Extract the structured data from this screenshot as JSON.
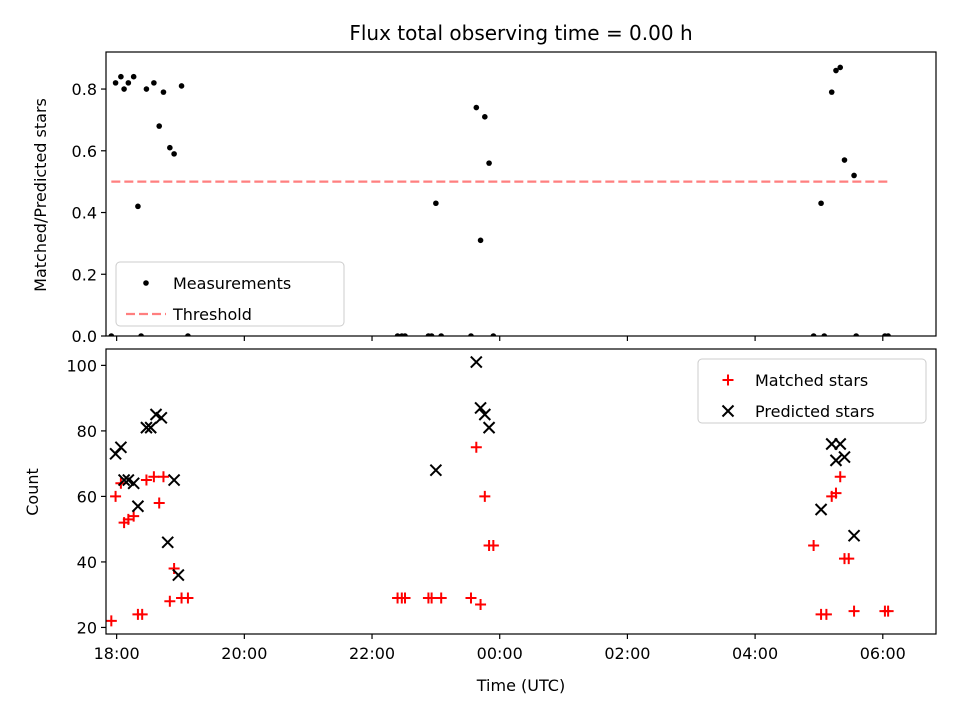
{
  "chart_data": [
    {
      "type": "scatter",
      "title": "Flux total observing time = 0.00 h",
      "xlabel": "",
      "ylabel": "Matched/Predicted stars",
      "xlim": [
        "17:50",
        "06:50"
      ],
      "ylim": [
        0,
        0.92
      ],
      "yticks": [
        "0.0",
        "0.2",
        "0.4",
        "0.6",
        "0.8"
      ],
      "legend_position": "lower-left",
      "series": [
        {
          "name": "Measurements",
          "marker": "dot",
          "color": "#000000",
          "points": [
            {
              "x": "17:59",
              "y": 0.82
            },
            {
              "x": "18:04",
              "y": 0.84
            },
            {
              "x": "18:07",
              "y": 0.8
            },
            {
              "x": "18:11",
              "y": 0.82
            },
            {
              "x": "18:16",
              "y": 0.84
            },
            {
              "x": "18:20",
              "y": 0.42
            },
            {
              "x": "18:28",
              "y": 0.8
            },
            {
              "x": "18:35",
              "y": 0.82
            },
            {
              "x": "18:40",
              "y": 0.68
            },
            {
              "x": "18:44",
              "y": 0.79
            },
            {
              "x": "18:50",
              "y": 0.61
            },
            {
              "x": "18:54",
              "y": 0.59
            },
            {
              "x": "19:01",
              "y": 0.81
            },
            {
              "x": "17:55",
              "y": 0.0
            },
            {
              "x": "18:23",
              "y": 0.0
            },
            {
              "x": "19:07",
              "y": 0.0
            },
            {
              "x": "23:00",
              "y": 0.43
            },
            {
              "x": "23:38",
              "y": 0.74
            },
            {
              "x": "23:42",
              "y": 0.31
            },
            {
              "x": "23:46",
              "y": 0.71
            },
            {
              "x": "23:50",
              "y": 0.56
            },
            {
              "x": "22:24",
              "y": 0.0
            },
            {
              "x": "22:28",
              "y": 0.0
            },
            {
              "x": "22:31",
              "y": 0.0
            },
            {
              "x": "22:53",
              "y": 0.0
            },
            {
              "x": "22:56",
              "y": 0.0
            },
            {
              "x": "23:05",
              "y": 0.0
            },
            {
              "x": "23:33",
              "y": 0.0
            },
            {
              "x": "23:54",
              "y": 0.0
            },
            {
              "x": "05:02",
              "y": 0.43
            },
            {
              "x": "05:12",
              "y": 0.79
            },
            {
              "x": "05:16",
              "y": 0.86
            },
            {
              "x": "05:20",
              "y": 0.87
            },
            {
              "x": "05:24",
              "y": 0.57
            },
            {
              "x": "05:33",
              "y": 0.52
            },
            {
              "x": "04:55",
              "y": 0.0
            },
            {
              "x": "05:05",
              "y": 0.0
            },
            {
              "x": "05:35",
              "y": 0.0
            },
            {
              "x": "06:02",
              "y": 0.0
            },
            {
              "x": "06:05",
              "y": 0.0
            }
          ]
        },
        {
          "name": "Threshold",
          "line_style": "dashed",
          "color": "#ff7f7f",
          "x": [
            "17:55",
            "06:05"
          ],
          "y": [
            0.5,
            0.5
          ]
        }
      ]
    },
    {
      "type": "scatter",
      "title": "",
      "xlabel": "Time (UTC)",
      "ylabel": "Count",
      "xlim": [
        "17:50",
        "06:50"
      ],
      "ylim": [
        18,
        105
      ],
      "xticks": [
        "18:00",
        "20:00",
        "22:00",
        "00:00",
        "02:00",
        "04:00",
        "06:00"
      ],
      "yticks": [
        "20",
        "40",
        "60",
        "80",
        "100"
      ],
      "legend_position": "upper-right",
      "series": [
        {
          "name": "Matched stars",
          "marker": "plus",
          "color": "#ff0000",
          "points": [
            {
              "x": "17:55",
              "y": 22
            },
            {
              "x": "17:59",
              "y": 60
            },
            {
              "x": "18:04",
              "y": 64
            },
            {
              "x": "18:07",
              "y": 52
            },
            {
              "x": "18:11",
              "y": 53
            },
            {
              "x": "18:16",
              "y": 54
            },
            {
              "x": "18:20",
              "y": 24
            },
            {
              "x": "18:24",
              "y": 24
            },
            {
              "x": "18:28",
              "y": 65
            },
            {
              "x": "18:35",
              "y": 66
            },
            {
              "x": "18:40",
              "y": 58
            },
            {
              "x": "18:44",
              "y": 66
            },
            {
              "x": "18:50",
              "y": 28
            },
            {
              "x": "18:54",
              "y": 38
            },
            {
              "x": "19:01",
              "y": 29
            },
            {
              "x": "19:07",
              "y": 29
            },
            {
              "x": "22:24",
              "y": 29
            },
            {
              "x": "22:28",
              "y": 29
            },
            {
              "x": "22:31",
              "y": 29
            },
            {
              "x": "22:53",
              "y": 29
            },
            {
              "x": "22:56",
              "y": 29
            },
            {
              "x": "23:05",
              "y": 29
            },
            {
              "x": "23:33",
              "y": 29
            },
            {
              "x": "23:38",
              "y": 75
            },
            {
              "x": "23:42",
              "y": 27
            },
            {
              "x": "23:46",
              "y": 60
            },
            {
              "x": "23:50",
              "y": 45
            },
            {
              "x": "23:54",
              "y": 45
            },
            {
              "x": "04:55",
              "y": 45
            },
            {
              "x": "05:02",
              "y": 24
            },
            {
              "x": "05:07",
              "y": 24
            },
            {
              "x": "05:12",
              "y": 60
            },
            {
              "x": "05:16",
              "y": 61
            },
            {
              "x": "05:20",
              "y": 66
            },
            {
              "x": "05:24",
              "y": 41
            },
            {
              "x": "05:28",
              "y": 41
            },
            {
              "x": "05:33",
              "y": 25
            },
            {
              "x": "06:02",
              "y": 25
            },
            {
              "x": "06:05",
              "y": 25
            }
          ]
        },
        {
          "name": "Predicted stars",
          "marker": "x",
          "color": "#000000",
          "points": [
            {
              "x": "17:59",
              "y": 73
            },
            {
              "x": "18:04",
              "y": 75
            },
            {
              "x": "18:07",
              "y": 65
            },
            {
              "x": "18:11",
              "y": 65
            },
            {
              "x": "18:16",
              "y": 64
            },
            {
              "x": "18:20",
              "y": 57
            },
            {
              "x": "18:28",
              "y": 81
            },
            {
              "x": "18:32",
              "y": 81
            },
            {
              "x": "18:37",
              "y": 85
            },
            {
              "x": "18:42",
              "y": 84
            },
            {
              "x": "18:48",
              "y": 46
            },
            {
              "x": "18:54",
              "y": 65
            },
            {
              "x": "18:58",
              "y": 36
            },
            {
              "x": "23:00",
              "y": 68
            },
            {
              "x": "23:38",
              "y": 101
            },
            {
              "x": "23:42",
              "y": 87
            },
            {
              "x": "23:46",
              "y": 85
            },
            {
              "x": "23:50",
              "y": 81
            },
            {
              "x": "05:02",
              "y": 56
            },
            {
              "x": "05:12",
              "y": 76
            },
            {
              "x": "05:16",
              "y": 71
            },
            {
              "x": "05:20",
              "y": 76
            },
            {
              "x": "05:24",
              "y": 72
            },
            {
              "x": "05:33",
              "y": 48
            }
          ]
        }
      ]
    }
  ]
}
